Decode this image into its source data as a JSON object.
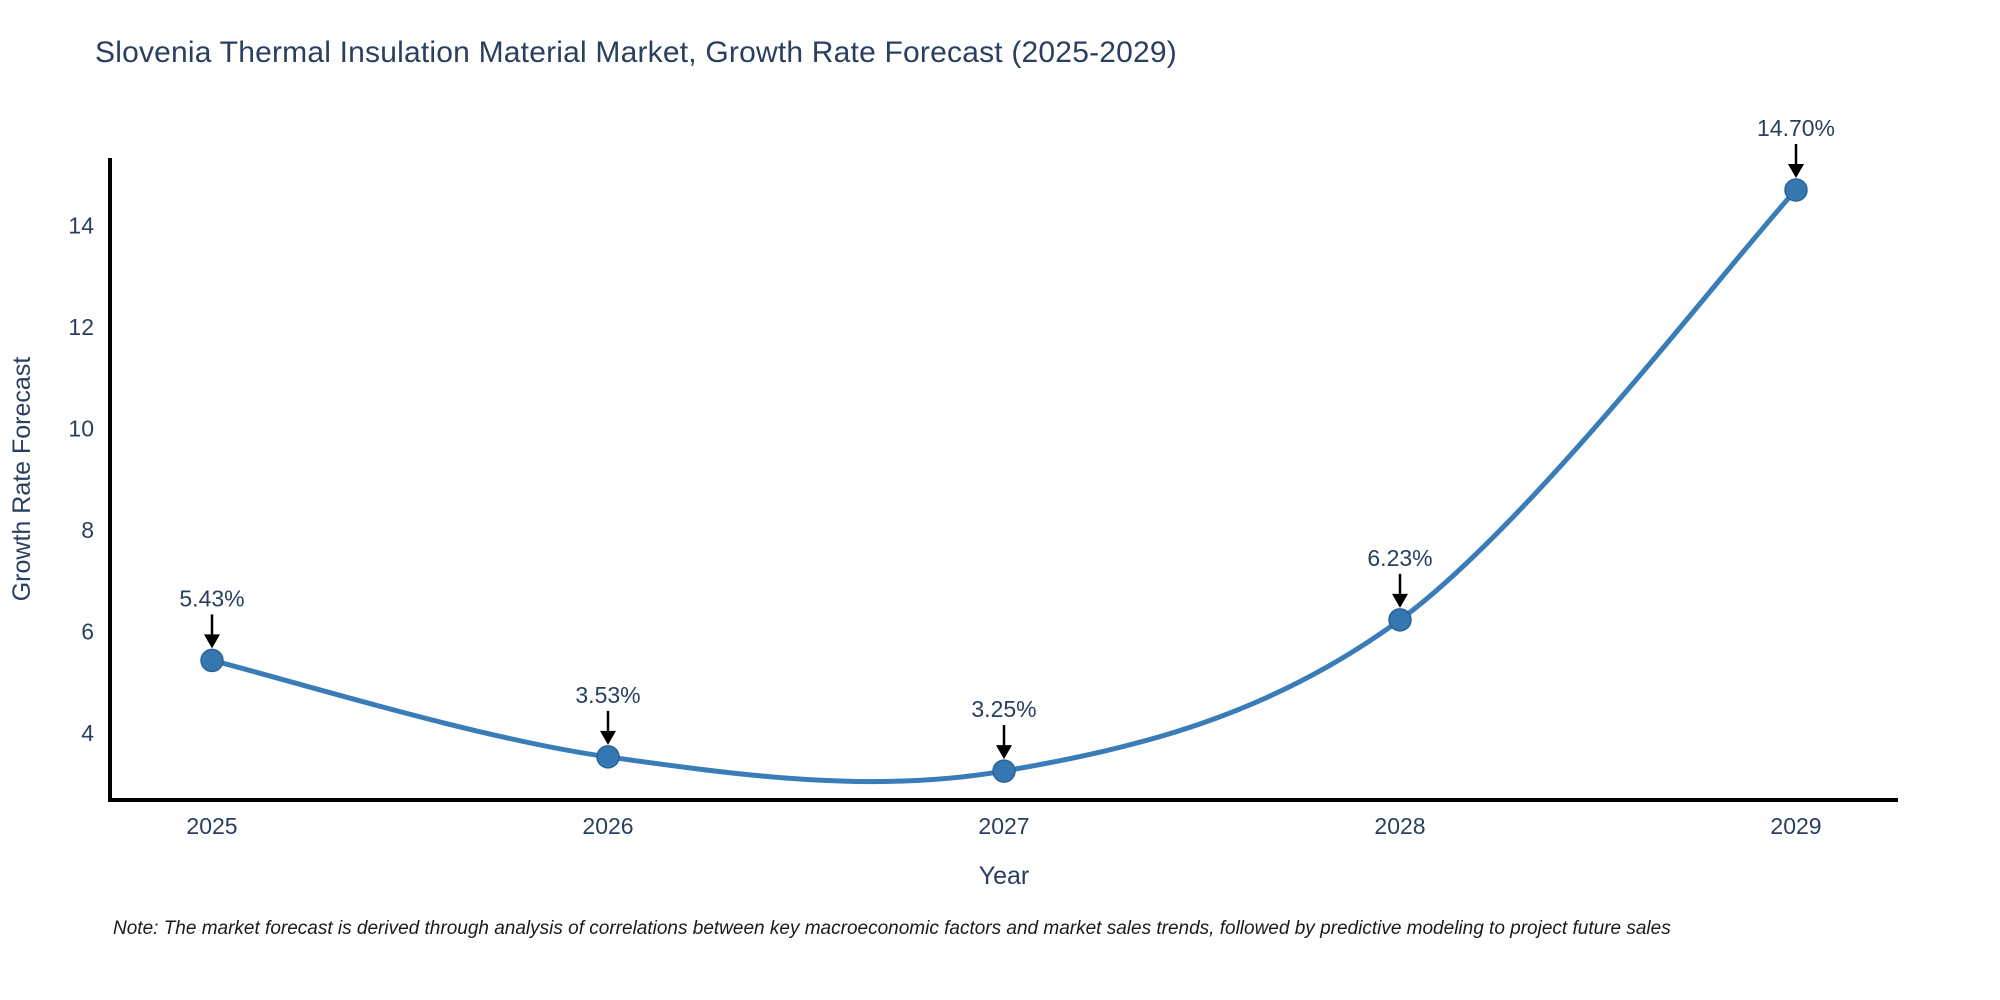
{
  "chart": {
    "title": "Slovenia Thermal Insulation Material Market, Growth Rate Forecast (2025-2029)"
  },
  "chart_data": {
    "type": "line",
    "x": [
      "2025",
      "2026",
      "2027",
      "2028",
      "2029"
    ],
    "series": [
      {
        "name": "Growth Rate Forecast",
        "values": [
          5.43,
          3.53,
          3.25,
          6.23,
          14.7
        ]
      }
    ],
    "point_labels": [
      "5.43%",
      "3.53%",
      "3.25%",
      "6.23%",
      "14.70%"
    ],
    "title": "Slovenia Thermal Insulation Material Market, Growth Rate Forecast (2025-2029)",
    "xlabel": "Year",
    "ylabel": "Growth Rate Forecast",
    "y_ticks": [
      4,
      6,
      8,
      10,
      12,
      14
    ],
    "ylim": [
      2.68,
      15.33
    ],
    "line_shape": "spline",
    "grid": false,
    "legend_visible": false,
    "line_color": "#3a7cb8",
    "marker_color": "#3577b1",
    "marker_edge_color": "#2b6399",
    "annotation_arrow_color": "#000000",
    "text_color": "#2a3f5f",
    "axis_line_color": "#000000"
  },
  "note": {
    "text": "Note: The market forecast is derived through analysis of correlations between key macroeconomic factors and market sales trends, followed by predictive modeling to project future sales"
  }
}
